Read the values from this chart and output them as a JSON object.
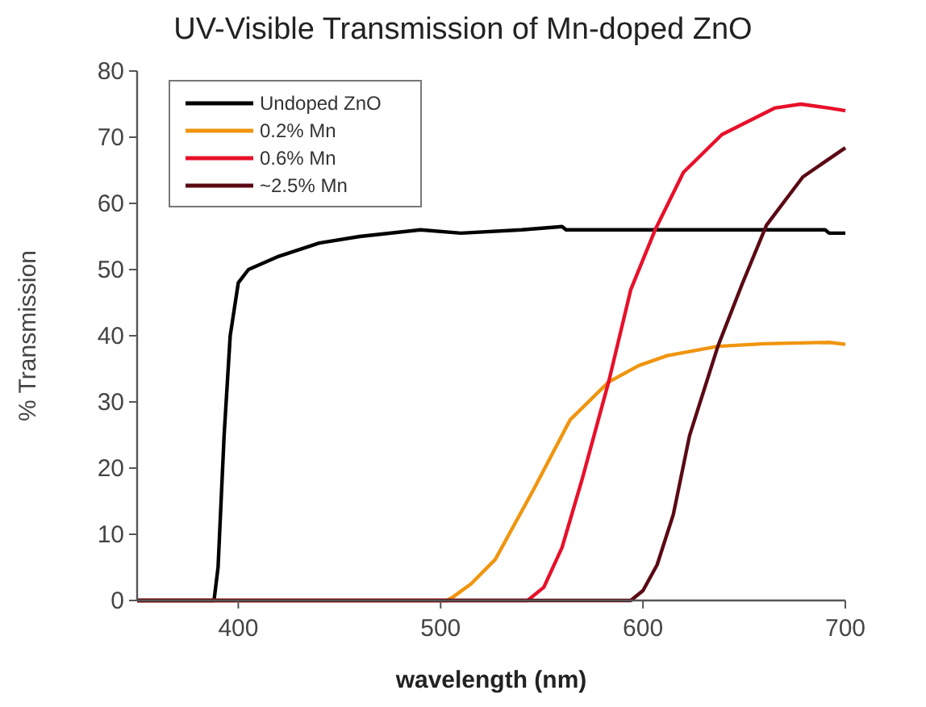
{
  "chart_data": {
    "type": "line",
    "title": "UV-Visible Transmission of  Mn-doped ZnO",
    "xlabel": "wavelength (nm)",
    "ylabel": "% Transmission",
    "xlim": [
      350,
      700
    ],
    "xticks": [
      400,
      500,
      600,
      700
    ],
    "ylim": [
      0,
      80
    ],
    "yticks": [
      0,
      10,
      20,
      30,
      40,
      50,
      60,
      70,
      80
    ],
    "legend": "top left",
    "grid": false,
    "marker": "none",
    "series": [
      {
        "name": "Undoped ZnO",
        "color": "#000000",
        "x": [
          350,
          388,
          390,
          393,
          396,
          400,
          405,
          420,
          440,
          460,
          490,
          510,
          540,
          560,
          562,
          600,
          650,
          690,
          692,
          700
        ],
        "values": [
          0,
          0,
          5,
          25,
          40,
          48,
          50,
          52,
          54,
          55,
          56,
          55.5,
          56,
          56.5,
          56,
          56,
          56,
          56,
          55.5,
          55.5
        ]
      },
      {
        "name": "0.2% Mn",
        "color": "#f0950f",
        "x": [
          350,
          503,
          506,
          515,
          527,
          546,
          564,
          583,
          598,
          612,
          637,
          660,
          692,
          700
        ],
        "values": [
          0,
          0,
          0.5,
          2.5,
          6.2,
          16.8,
          27.3,
          33,
          35.5,
          37,
          38.4,
          38.8,
          39,
          38.7
        ]
      },
      {
        "name": "0.6% Mn",
        "color": "#e8102a",
        "x": [
          350,
          543,
          551,
          560,
          570,
          583,
          594,
          606,
          620,
          639,
          665,
          678,
          692,
          700
        ],
        "values": [
          0,
          0,
          2,
          8,
          18.4,
          33,
          47,
          56,
          64.7,
          70.4,
          74.4,
          75,
          74.4,
          74
        ]
      },
      {
        "name": "~2.5% Mn",
        "color": "#5a0a14",
        "x": [
          350,
          594,
          600,
          607,
          615,
          623,
          637,
          649,
          661,
          679,
          700
        ],
        "values": [
          0,
          0,
          1.5,
          5.4,
          13,
          24.9,
          38.4,
          47.8,
          56.7,
          64,
          68.4
        ]
      }
    ]
  }
}
